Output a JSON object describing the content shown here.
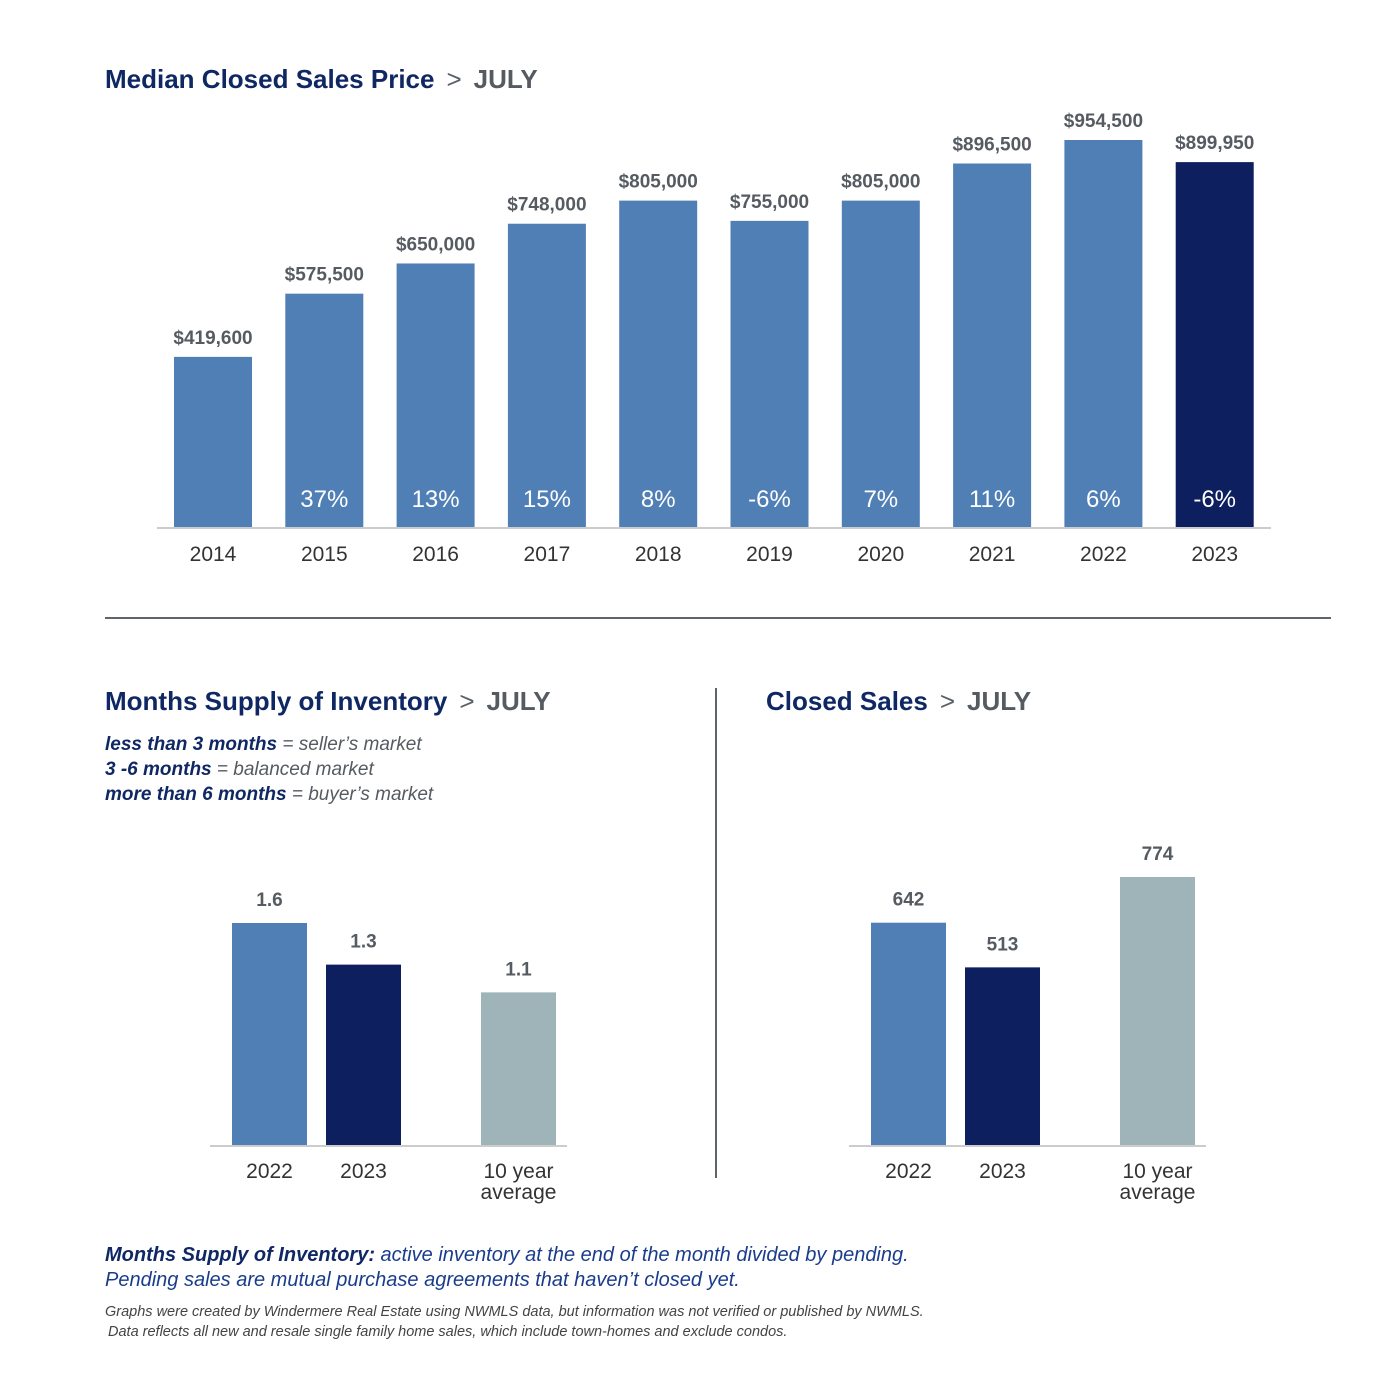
{
  "colors": {
    "base": "#4f7fb5",
    "current": "#0d1f5e",
    "average": "#9fb4b8",
    "axis": "#cccccc"
  },
  "titles": {
    "price": {
      "main": "Median Closed Sales Price",
      "sep": ">",
      "month": "JULY"
    },
    "supply": {
      "main": "Months Supply of Inventory",
      "sep": ">",
      "month": "JULY"
    },
    "sales": {
      "main": "Closed Sales",
      "sep": ">",
      "month": "JULY"
    }
  },
  "legend": {
    "line1_bold": "less than 3 months",
    "line1_rest": " = seller’s market",
    "line2_bold": "3 -6 months",
    "line2_rest": " = balanced market",
    "line3_bold": "more than 6 months",
    "line3_rest": " = buyer’s market"
  },
  "footnote": {
    "bold": "Months Supply of Inventory:",
    "rest": " active inventory at the end of the month divided by pending.",
    "line2": "Pending sales are mutual purchase agreements that haven’t closed yet."
  },
  "fine_print": {
    "line1": "Graphs were created by Windermere Real Estate using NWMLS data, but information was not verified or published by NWMLS.",
    "line2": "Data reflects all new and resale single family home sales, which include town-homes and exclude condos."
  },
  "chart_data": [
    {
      "type": "bar",
      "title": "Median Closed Sales Price",
      "categories": [
        "2014",
        "2015",
        "2016",
        "2017",
        "2018",
        "2019",
        "2020",
        "2021",
        "2022",
        "2023"
      ],
      "values": [
        419600,
        575500,
        650000,
        748000,
        805000,
        755000,
        805000,
        896500,
        954500,
        899950
      ],
      "value_labels": [
        "$419,600",
        "$575,500",
        "$650,000",
        "$748,000",
        "$805,000",
        "$755,000",
        "$805,000",
        "$896,500",
        "$954,500",
        "$899,950"
      ],
      "pct_change": [
        "",
        "37%",
        "13%",
        "15%",
        "8%",
        "-6%",
        "7%",
        "11%",
        "6%",
        "-6%"
      ],
      "highlight": [
        false,
        false,
        false,
        false,
        false,
        false,
        false,
        false,
        false,
        true
      ],
      "ylim": [
        0,
        1000000
      ]
    },
    {
      "type": "bar",
      "title": "Months Supply of Inventory",
      "categories": [
        "2022",
        "2023",
        "10 year average"
      ],
      "values": [
        1.6,
        1.3,
        1.1
      ],
      "value_labels": [
        "1.6",
        "1.3",
        "1.1"
      ],
      "ylim": [
        0,
        1.6
      ]
    },
    {
      "type": "bar",
      "title": "Closed Sales",
      "categories": [
        "2022",
        "2023",
        "10 year average"
      ],
      "values": [
        642,
        513,
        774
      ],
      "value_labels": [
        "642",
        "513",
        "774"
      ],
      "ylim": [
        0,
        774
      ]
    }
  ]
}
